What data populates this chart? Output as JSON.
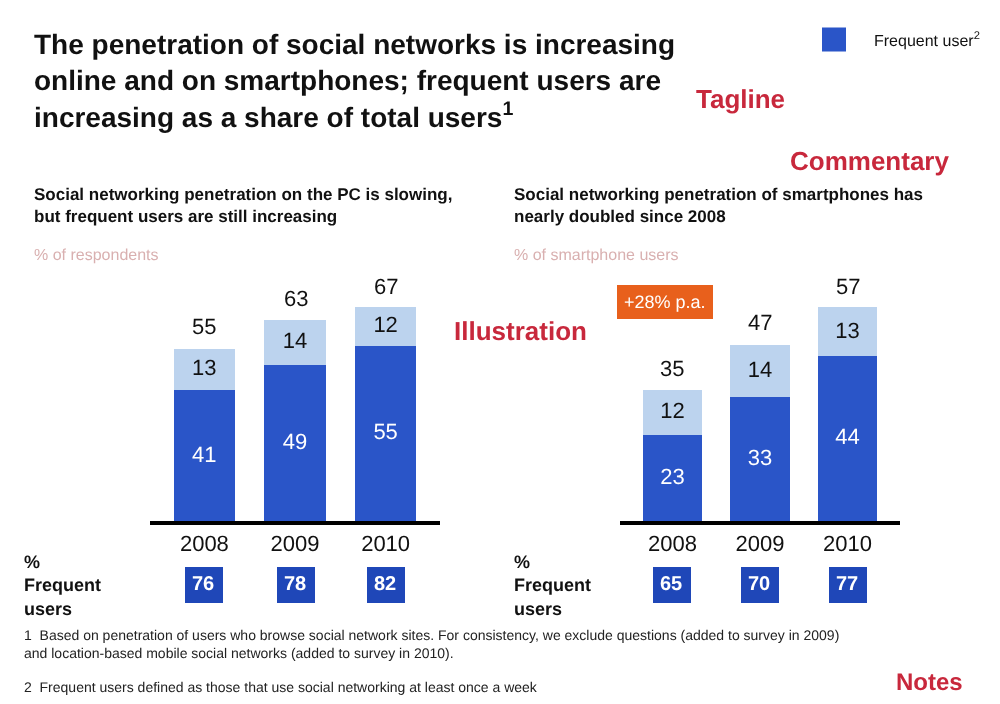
{
  "chart_data": [
    {
      "type": "bar",
      "stacked": true,
      "title": "Social networking penetration on the PC is slowing, but frequent users are still increasing",
      "subtitle": "% of respondents",
      "categories": [
        "2008",
        "2009",
        "2010"
      ],
      "series": [
        {
          "name": "Frequent user$^{2}$",
          "color": "#2a55c8",
          "values": [
            41,
            49,
            55
          ]
        },
        {
          "color": "#bcd3ee",
          "values": [
            13,
            14,
            12
          ]
        }
      ],
      "data_labels": true,
      "totals": [
        "55",
        "63",
        "67"
      ],
      "legend": "top right",
      "annotations": [
        "The penetration of social networks is increasing online and on smartphones; frequent users are increasing as a share of total users$^{1}$",
        "Tagline",
        "Commentary",
        "Illustration",
        "% Frequent users",
        "76",
        "78",
        "82",
        "1  Based on penetration of users who browse social network sites. For consistency, we exclude questions (added to survey in 2009) and location-based mobile social networks (added to survey in 2010).",
        "2  Frequent users defined as those that use social networking at least once a week",
        "Notes"
      ]
    },
    {
      "type": "bar",
      "stacked": true,
      "title": "Social networking penetration of smartphones has nearly doubled since 2008",
      "subtitle": "% of smartphone users",
      "categories": [
        "2008",
        "2009",
        "2010"
      ],
      "series": [
        {
          "color": "#2a55c8",
          "values": [
            23,
            33,
            44
          ]
        },
        {
          "color": "#bcd3ee",
          "values": [
            12,
            14,
            13
          ]
        }
      ],
      "data_labels": true,
      "totals": [
        "35",
        "47",
        "57"
      ],
      "annotations": [
        "+28% p.a.",
        "% Frequent users",
        "65",
        "70",
        "77"
      ]
    }
  ]
}
